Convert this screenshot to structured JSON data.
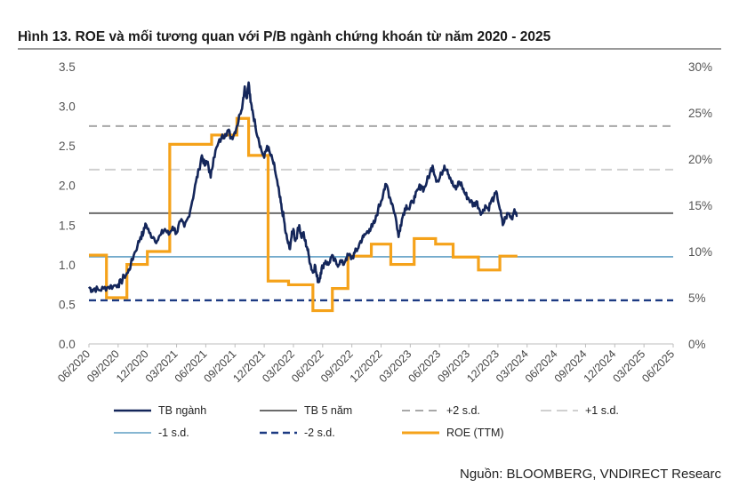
{
  "chart_data": {
    "type": "line",
    "title": "Hình 13. ROE và mối tương quan với P/B ngành chứng khoán từ năm 2020 - 2025",
    "source": "Nguồn: BLOOMBERG, VNDIRECT Researc",
    "y_left": {
      "ylim": [
        0,
        3.5
      ],
      "ticks": [
        "0.0",
        "0.5",
        "1.0",
        "1.5",
        "2.0",
        "2.5",
        "3.0",
        "3.5"
      ]
    },
    "y_right": {
      "ylim": [
        0,
        30
      ],
      "ticks": [
        "0%",
        "5%",
        "10%",
        "15%",
        "20%",
        "25%",
        "30%"
      ]
    },
    "x_ticks": [
      "06/2020",
      "09/2020",
      "12/2020",
      "03/2021",
      "06/2021",
      "09/2021",
      "12/2021",
      "03/2022",
      "06/2022",
      "09/2022",
      "12/2022",
      "03/2023",
      "06/2023",
      "09/2023",
      "12/2023",
      "03/2024",
      "06/2024",
      "09/2024",
      "12/2024",
      "03/2025",
      "06/2025"
    ],
    "series": [
      {
        "name": "TB ngành",
        "axis": "left",
        "color": "#14265a",
        "points": [
          [
            0,
            0.72
          ],
          [
            0.3,
            0.68
          ],
          [
            0.6,
            0.7
          ],
          [
            1,
            0.68
          ],
          [
            1.5,
            0.7
          ],
          [
            2,
            0.72
          ],
          [
            2.5,
            0.73
          ],
          [
            3,
            0.75
          ],
          [
            3.3,
            0.78
          ],
          [
            3.6,
            0.85
          ],
          [
            4,
            0.9
          ],
          [
            4.3,
            1.0
          ],
          [
            4.6,
            1.12
          ],
          [
            5,
            1.25
          ],
          [
            5.3,
            1.35
          ],
          [
            5.6,
            1.4
          ],
          [
            5.8,
            1.52
          ],
          [
            6.2,
            1.4
          ],
          [
            6.6,
            1.35
          ],
          [
            7,
            1.3
          ],
          [
            7.4,
            1.38
          ],
          [
            7.8,
            1.45
          ],
          [
            8.2,
            1.38
          ],
          [
            8.6,
            1.48
          ],
          [
            9,
            1.4
          ],
          [
            9.4,
            1.55
          ],
          [
            9.8,
            1.48
          ],
          [
            10.2,
            1.6
          ],
          [
            10.6,
            1.8
          ],
          [
            11,
            2.05
          ],
          [
            11.3,
            2.2
          ],
          [
            11.6,
            2.38
          ],
          [
            11.9,
            2.25
          ],
          [
            12.2,
            2.3
          ],
          [
            12.5,
            2.1
          ],
          [
            12.8,
            2.35
          ],
          [
            13.2,
            2.5
          ],
          [
            13.6,
            2.6
          ],
          [
            14,
            2.65
          ],
          [
            14.3,
            2.7
          ],
          [
            14.6,
            2.6
          ],
          [
            14.9,
            2.65
          ],
          [
            15.2,
            2.75
          ],
          [
            15.5,
            2.9
          ],
          [
            15.8,
            3.05
          ],
          [
            16.0,
            3.25
          ],
          [
            16.2,
            3.1
          ],
          [
            16.4,
            3.3
          ],
          [
            16.6,
            3.05
          ],
          [
            16.8,
            2.95
          ],
          [
            17.1,
            2.75
          ],
          [
            17.4,
            2.6
          ],
          [
            17.7,
            2.45
          ],
          [
            18.0,
            2.35
          ],
          [
            18.3,
            2.5
          ],
          [
            18.6,
            2.4
          ],
          [
            18.9,
            2.3
          ],
          [
            19.1,
            2.2
          ],
          [
            19.4,
            2.0
          ],
          [
            19.6,
            1.85
          ],
          [
            19.8,
            1.7
          ],
          [
            20.0,
            1.6
          ],
          [
            20.2,
            1.4
          ],
          [
            20.4,
            1.3
          ],
          [
            20.6,
            1.2
          ],
          [
            20.8,
            1.35
          ],
          [
            21.0,
            1.45
          ],
          [
            21.2,
            1.3
          ],
          [
            21.4,
            1.4
          ],
          [
            21.6,
            1.5
          ],
          [
            21.8,
            1.35
          ],
          [
            22.0,
            1.4
          ],
          [
            22.2,
            1.3
          ],
          [
            22.4,
            1.22
          ],
          [
            22.6,
            1.1
          ],
          [
            22.8,
            0.98
          ],
          [
            23.0,
            0.9
          ],
          [
            23.2,
            1.0
          ],
          [
            23.4,
            0.85
          ],
          [
            23.6,
            0.78
          ],
          [
            23.8,
            0.9
          ],
          [
            24.0,
            0.98
          ],
          [
            24.3,
            1.05
          ],
          [
            24.6,
            1.0
          ],
          [
            24.9,
            1.1
          ],
          [
            25.2,
            1.05
          ],
          [
            25.5,
            1.0
          ],
          [
            25.8,
            1.05
          ],
          [
            26.1,
            1.0
          ],
          [
            26.4,
            1.08
          ],
          [
            26.7,
            1.12
          ],
          [
            27.0,
            1.08
          ],
          [
            27.3,
            1.15
          ],
          [
            27.6,
            1.2
          ],
          [
            27.9,
            1.3
          ],
          [
            28.2,
            1.35
          ],
          [
            28.5,
            1.4
          ],
          [
            28.8,
            1.45
          ],
          [
            29.1,
            1.48
          ],
          [
            29.4,
            1.55
          ],
          [
            29.7,
            1.7
          ],
          [
            30.0,
            1.8
          ],
          [
            30.3,
            1.95
          ],
          [
            30.6,
            2.0
          ],
          [
            30.9,
            1.85
          ],
          [
            31.2,
            1.75
          ],
          [
            31.5,
            1.6
          ],
          [
            31.8,
            1.35
          ],
          [
            32.0,
            1.5
          ],
          [
            32.3,
            1.65
          ],
          [
            32.6,
            1.75
          ],
          [
            32.9,
            1.7
          ],
          [
            33.2,
            1.8
          ],
          [
            33.5,
            1.85
          ],
          [
            33.8,
            1.95
          ],
          [
            34.1,
            2.0
          ],
          [
            34.4,
            1.95
          ],
          [
            34.7,
            2.05
          ],
          [
            35.0,
            2.15
          ],
          [
            35.3,
            2.25
          ],
          [
            35.6,
            2.1
          ],
          [
            35.9,
            2.05
          ],
          [
            36.2,
            2.15
          ],
          [
            36.5,
            2.25
          ],
          [
            36.8,
            2.2
          ],
          [
            37.1,
            2.1
          ],
          [
            37.4,
            2.0
          ],
          [
            37.7,
            1.95
          ],
          [
            38.0,
            2.05
          ],
          [
            38.3,
            2.0
          ],
          [
            38.6,
            1.9
          ],
          [
            38.9,
            1.85
          ],
          [
            39.2,
            1.8
          ],
          [
            39.5,
            1.75
          ],
          [
            39.8,
            1.8
          ],
          [
            40.1,
            1.7
          ],
          [
            40.4,
            1.65
          ],
          [
            40.7,
            1.75
          ],
          [
            41.0,
            1.7
          ],
          [
            41.3,
            1.8
          ],
          [
            41.6,
            1.85
          ],
          [
            41.9,
            1.9
          ],
          [
            42.2,
            1.7
          ],
          [
            42.5,
            1.5
          ],
          [
            42.8,
            1.6
          ],
          [
            43.1,
            1.65
          ],
          [
            43.4,
            1.58
          ],
          [
            43.7,
            1.7
          ],
          [
            44.0,
            1.62
          ]
        ]
      },
      {
        "name": "TB 5 năm",
        "axis": "left",
        "color": "#6b6b6b",
        "value": 1.65
      },
      {
        "name": "+2 s.d.",
        "axis": "left",
        "color": "#a8a8a8",
        "value": 2.75
      },
      {
        "name": "+1 s.d.",
        "axis": "left",
        "color": "#d0d0d0",
        "value": 2.2
      },
      {
        "name": "-1 s.d.",
        "axis": "left",
        "color": "#5f9ec4",
        "value": 1.1
      },
      {
        "name": "-2 s.d.",
        "axis": "left",
        "color": "#1c3a82",
        "value": 0.55
      },
      {
        "name": "ROE (TTM)",
        "axis": "right",
        "color": "#f5a21a",
        "steps": [
          [
            0,
            9.6
          ],
          [
            1.8,
            5.0
          ],
          [
            3.9,
            8.6
          ],
          [
            6.0,
            10.0
          ],
          [
            8.3,
            21.6
          ],
          [
            12.6,
            22.6
          ],
          [
            15.2,
            24.4
          ],
          [
            16.4,
            20.4
          ],
          [
            18.4,
            6.8
          ],
          [
            20.5,
            6.4
          ],
          [
            23.0,
            3.6
          ],
          [
            25.0,
            6.0
          ],
          [
            26.6,
            9.5
          ],
          [
            29.0,
            10.8
          ],
          [
            31.0,
            8.6
          ],
          [
            33.4,
            11.4
          ],
          [
            35.6,
            10.8
          ],
          [
            37.4,
            9.4
          ],
          [
            40.0,
            8.0
          ],
          [
            42.2,
            9.5
          ],
          [
            44.0,
            9.5
          ]
        ]
      }
    ],
    "legend": [
      "TB ngành",
      "TB 5 năm",
      "+2 s.d.",
      "+1 s.d.",
      "-1 s.d.",
      "-2 s.d.",
      "ROE (TTM)"
    ]
  }
}
